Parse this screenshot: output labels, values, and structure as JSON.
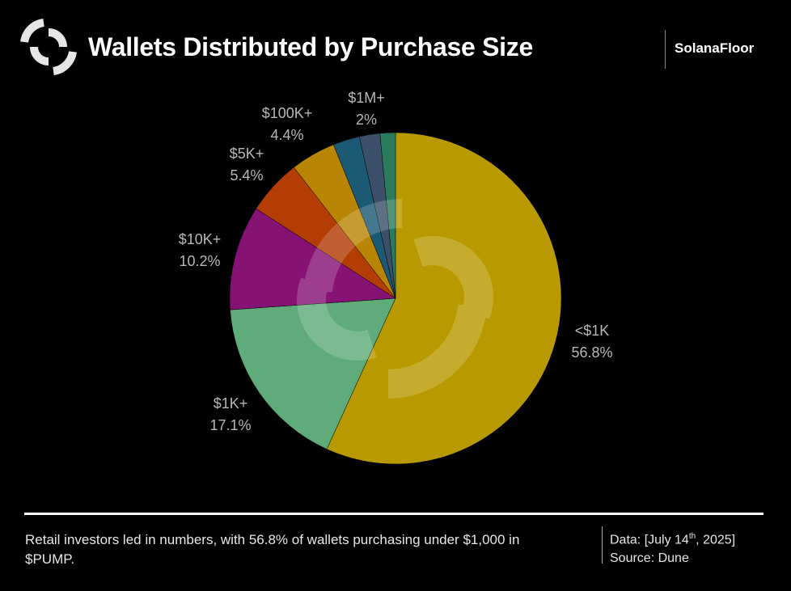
{
  "header": {
    "title": "Wallets Distributed by Purchase Size",
    "brand": "SolanaFloor"
  },
  "chart_data": {
    "type": "pie",
    "title": "Wallets Distributed by Purchase Size",
    "slices": [
      {
        "label": "<$1K",
        "value": 56.8,
        "value_label": "56.8%",
        "color": "#b89a00"
      },
      {
        "label": "$1K+",
        "value": 17.1,
        "value_label": "17.1%",
        "color": "#5fab7a"
      },
      {
        "label": "$10K+",
        "value": 10.2,
        "value_label": "10.2%",
        "color": "#861374"
      },
      {
        "label": "$5K+",
        "value": 5.4,
        "value_label": "5.4%",
        "color": "#b43c05"
      },
      {
        "label": "$100K+",
        "value": 4.4,
        "value_label": "4.4%",
        "color": "#b98505"
      },
      {
        "label": "",
        "value": 2.6,
        "value_label": "",
        "color": "#1c5a74"
      },
      {
        "label": "$1M+",
        "value": 2,
        "value_label": "2%",
        "color": "#3b5068"
      },
      {
        "label": "",
        "value": 1.5,
        "value_label": "",
        "color": "#2b7a5e"
      }
    ]
  },
  "footer": {
    "caption": "Retail investors led in numbers, with 56.8% of wallets purchasing under $1,000 in $PUMP.",
    "data_prefix": "Data: [July 14",
    "data_sup": "th",
    "data_suffix": ", 2025]",
    "source": "Source: Dune"
  }
}
